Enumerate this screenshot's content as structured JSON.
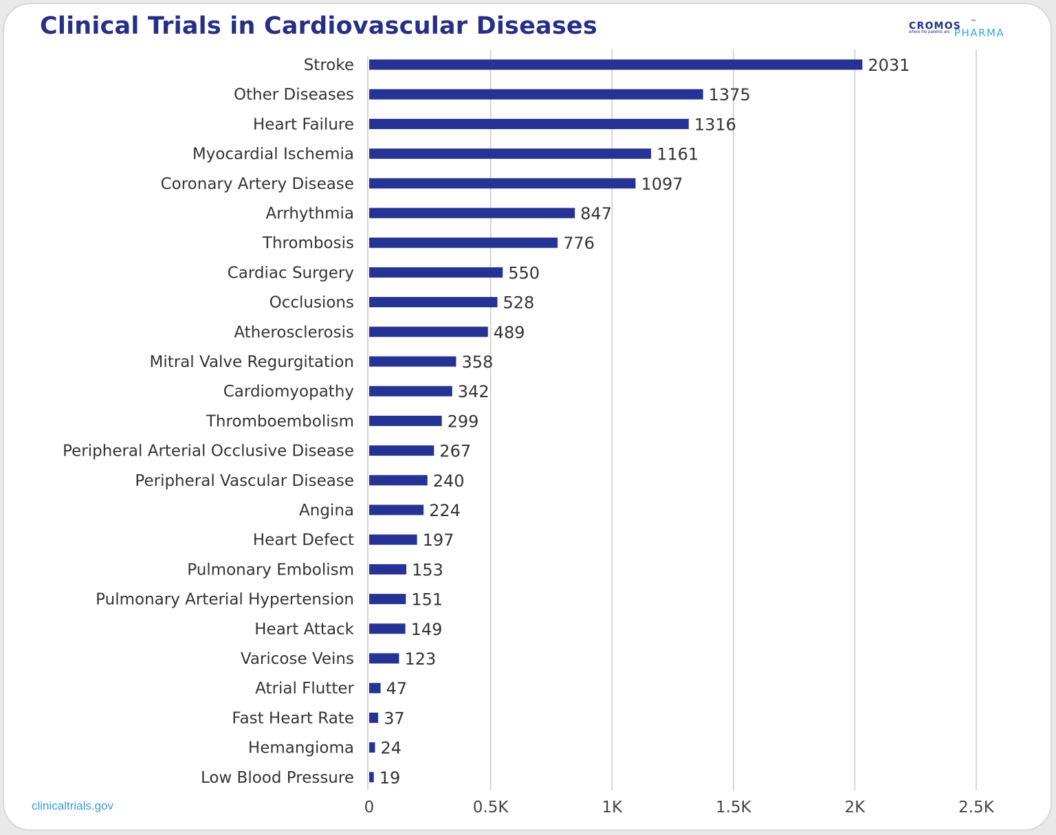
{
  "source": "clinicaltrials.gov",
  "logo": {
    "brand": "CROMOS",
    "tm": "™",
    "tagline": "where the patients are",
    "pharma": "PHARMA"
  },
  "colors": {
    "bar": "#273394",
    "title": "#252f86",
    "grid": "#d5d5d5",
    "source": "#3a9bd6"
  },
  "chart_data": {
    "type": "bar",
    "orientation": "horizontal",
    "title": "Clinical Trials in Cardiovascular Diseases",
    "categories": [
      "Stroke",
      "Other Diseases",
      "Heart Failure",
      "Myocardial Ischemia",
      "Coronary Artery Disease",
      "Arrhythmia",
      "Thrombosis",
      "Cardiac Surgery",
      "Occlusions",
      "Atherosclerosis",
      "Mitral Valve Regurgitation",
      "Cardiomyopathy",
      "Thromboembolism",
      "Peripheral Arterial Occlusive Disease",
      "Peripheral Vascular Disease",
      "Angina",
      "Heart Defect",
      "Pulmonary Embolism",
      "Pulmonary Arterial Hypertension",
      "Heart Attack",
      "Varicose Veins",
      "Atrial Flutter",
      "Fast Heart Rate",
      "Hemangioma",
      "Low Blood Pressure"
    ],
    "values": [
      2031,
      1375,
      1316,
      1161,
      1097,
      847,
      776,
      550,
      528,
      489,
      358,
      342,
      299,
      267,
      240,
      224,
      197,
      153,
      151,
      149,
      123,
      47,
      37,
      24,
      19
    ],
    "xlim": [
      0,
      2500
    ],
    "xticks": [
      0,
      500,
      1000,
      1500,
      2000,
      2500
    ],
    "xtick_labels": [
      "0",
      "0.5K",
      "1K",
      "1.5K",
      "2K",
      "2.5K"
    ],
    "grid": true,
    "data_labels": true
  }
}
